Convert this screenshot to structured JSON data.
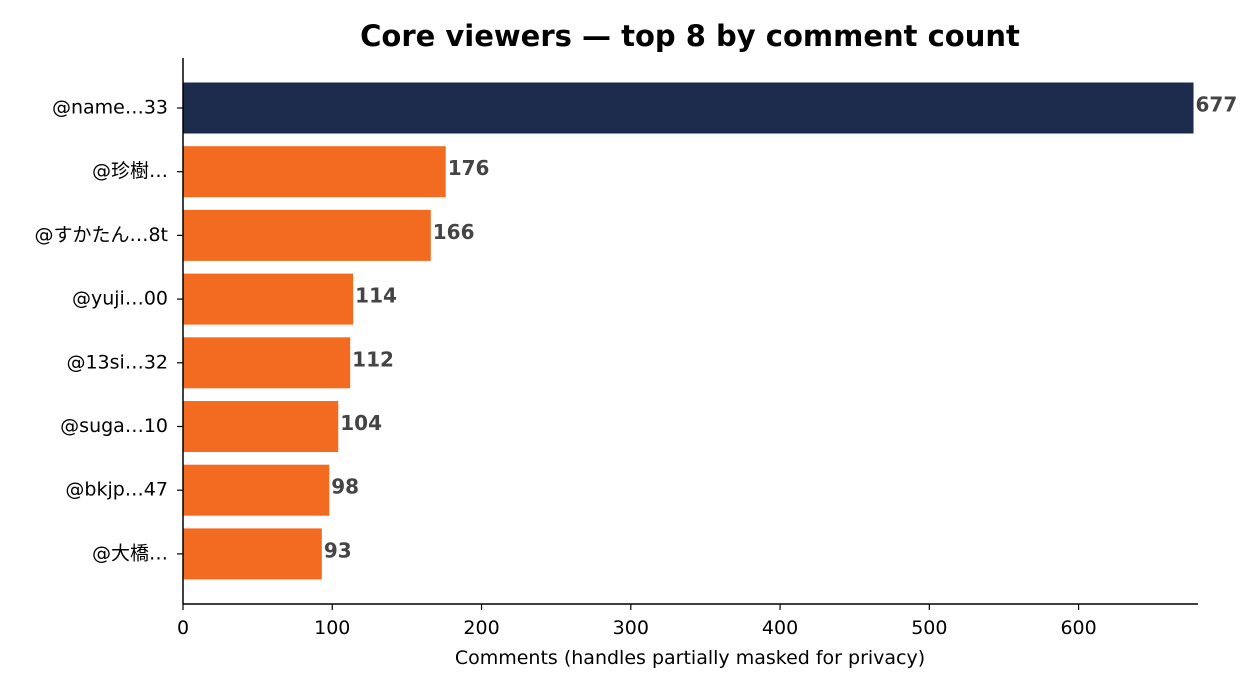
{
  "chart_data": {
    "type": "bar",
    "orientation": "horizontal",
    "title": "Core viewers — top 8 by comment count",
    "xlabel": "Comments (handles partially masked for privacy)",
    "ylabel": "",
    "categories": [
      "@name…33",
      "@珍樹…",
      "@すかたん…8t",
      "@yuji…00",
      "@13si…32",
      "@suga…10",
      "@bkjp…47",
      "@大橋…"
    ],
    "values": [
      677,
      176,
      166,
      114,
      112,
      104,
      98,
      93
    ],
    "value_labels": [
      "677",
      "176",
      "166",
      "114",
      "112",
      "104",
      "98",
      "93"
    ],
    "xlim": [
      0,
      680
    ],
    "xticks": [
      0,
      100,
      200,
      300,
      400,
      500,
      600
    ],
    "xtick_labels": [
      "0",
      "100",
      "200",
      "300",
      "400",
      "500",
      "600"
    ],
    "highlight_index": 0,
    "colors": {
      "highlight": "#1c2a4b",
      "bar": "#f26b21",
      "value_text": "#444444"
    },
    "grid": false,
    "legend": "none"
  }
}
